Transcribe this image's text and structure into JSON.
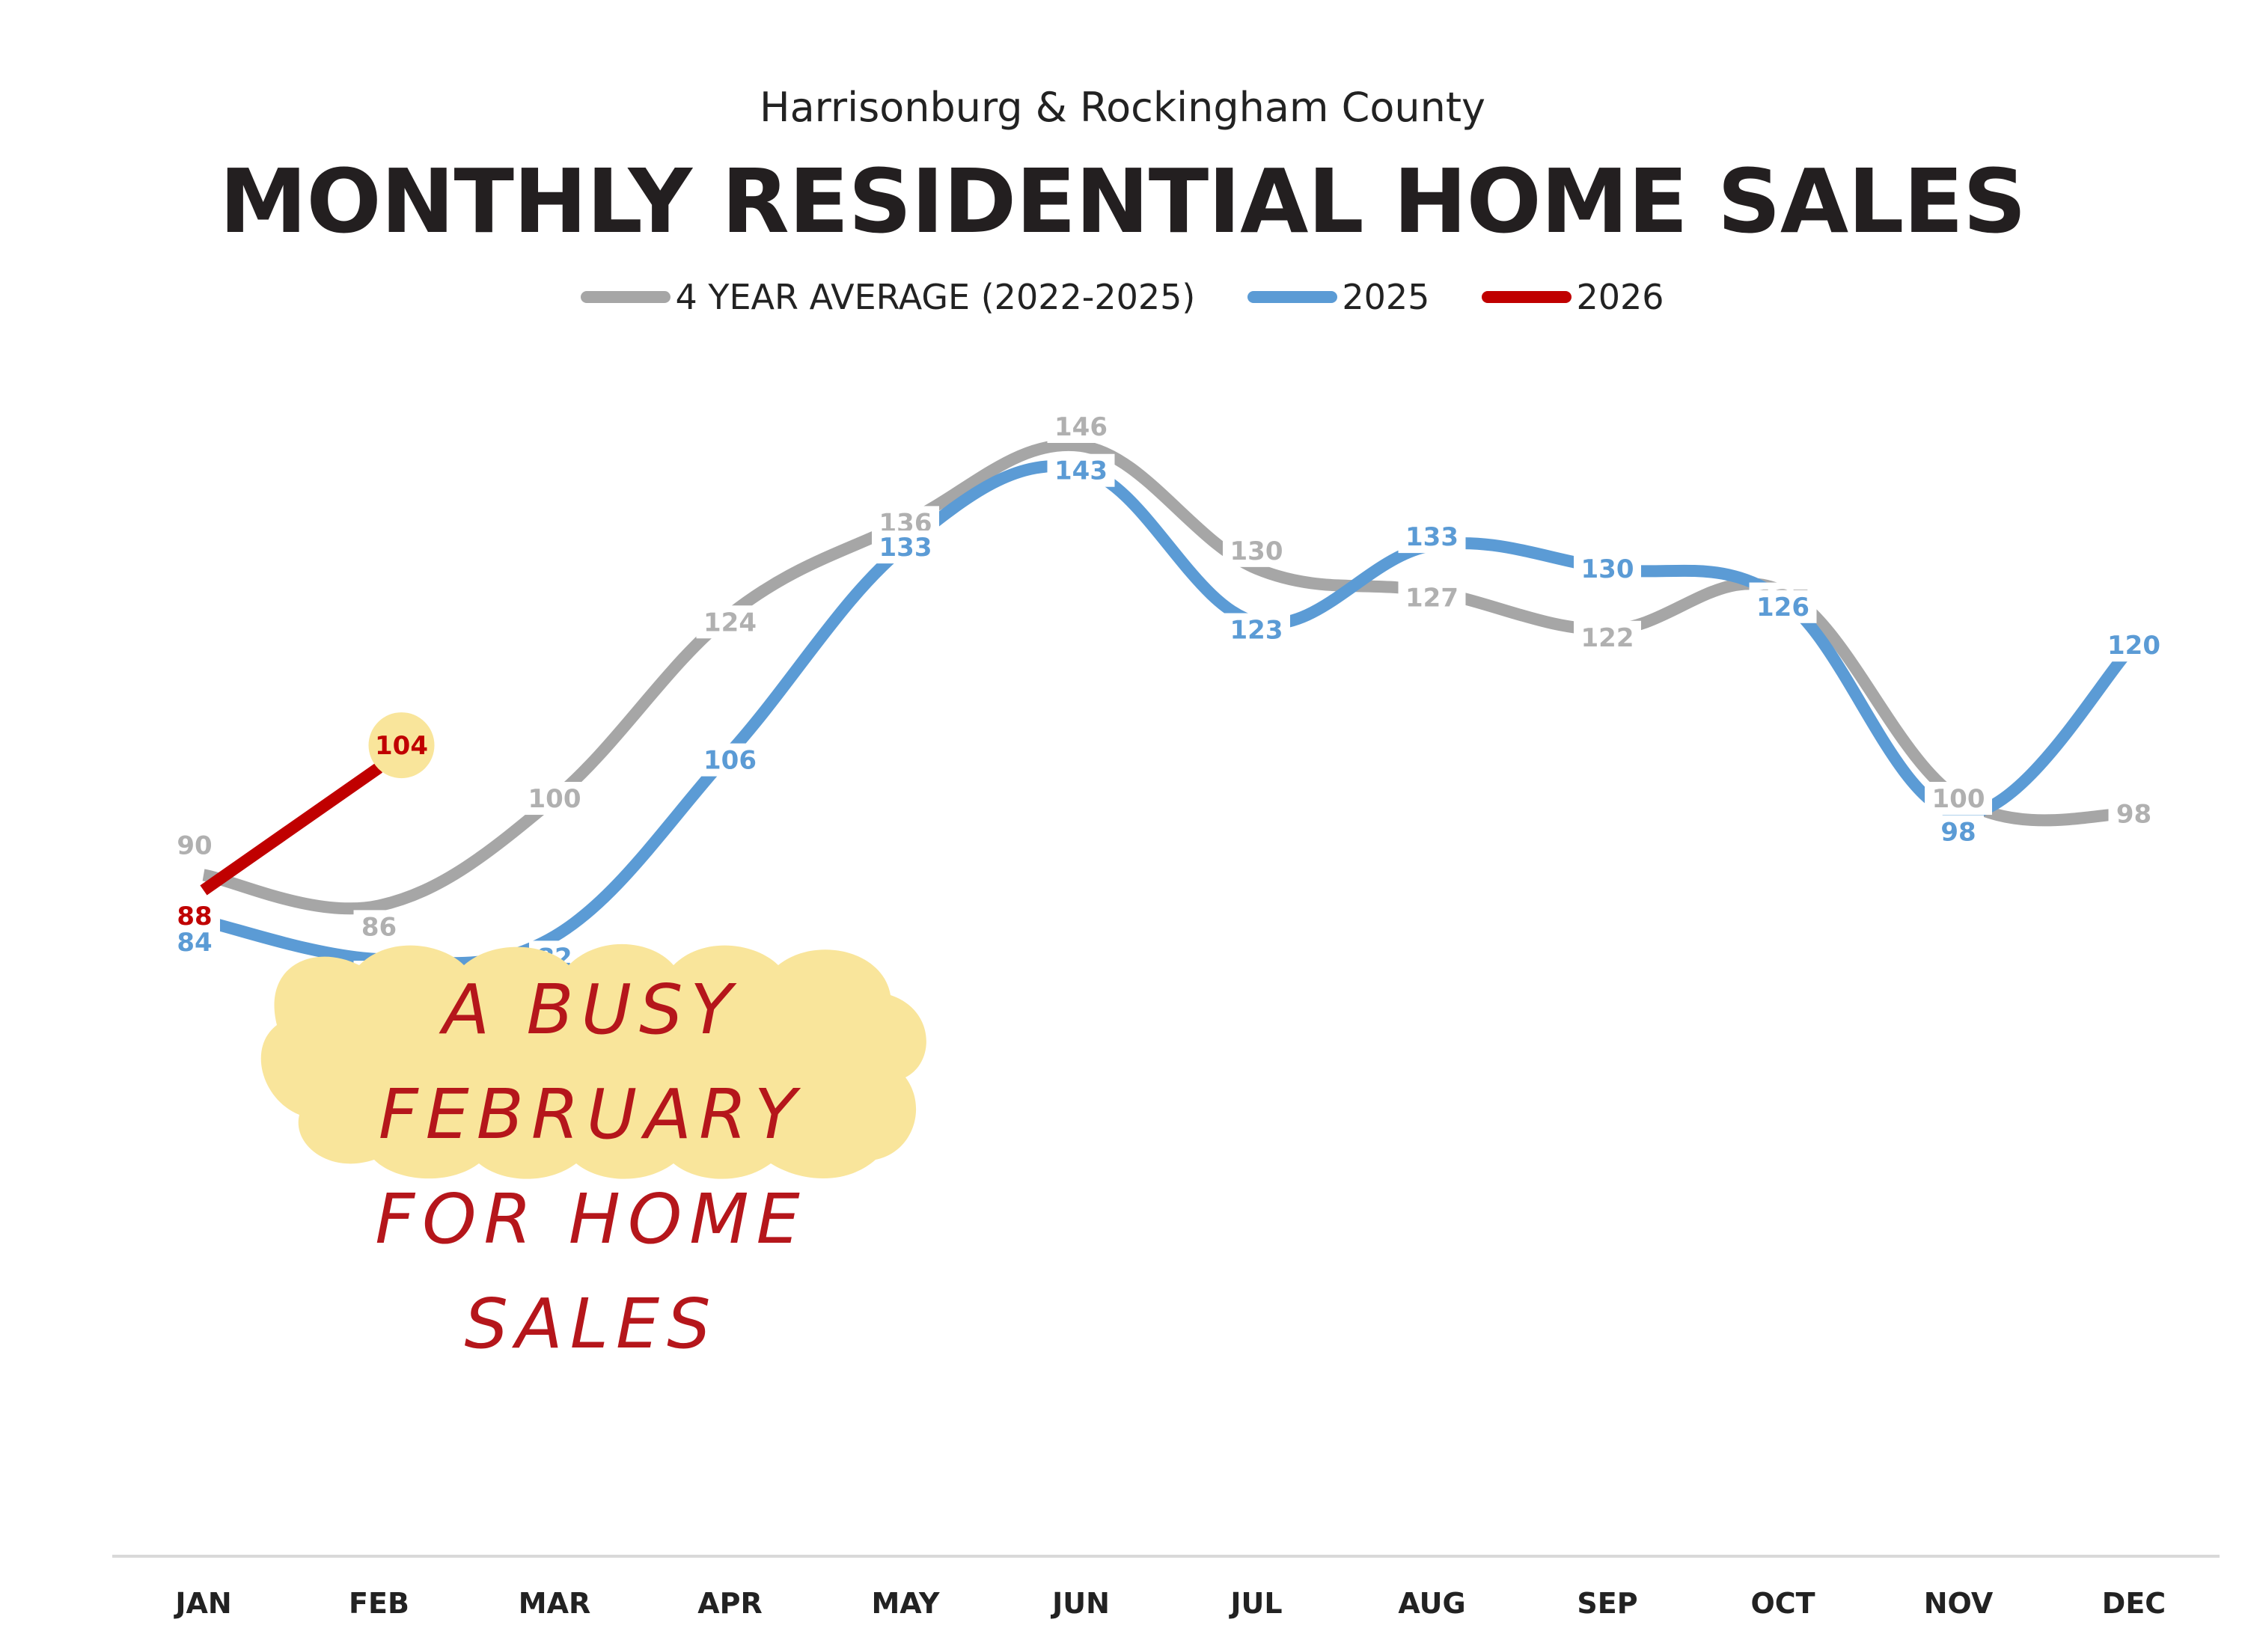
{
  "header": {
    "subtitle": "Harrisonburg & Rockingham County",
    "title": "MONTHLY RESIDENTIAL HOME SALES"
  },
  "legend": [
    {
      "label": "4 YEAR AVERAGE (2022-2025)",
      "color": "#a6a6a6"
    },
    {
      "label": "2025",
      "color": "#5b9bd5"
    },
    {
      "label": "2026",
      "color": "#c00000"
    }
  ],
  "annotation": {
    "line1": "A BUSY FEBRUARY",
    "line2": "FOR HOME SALES",
    "bg_color": "#f9e59b",
    "text_color": "#b5161b"
  },
  "highlight": {
    "month": "FEB",
    "value": "104",
    "bg_color": "#f9e59b"
  },
  "chart_data": {
    "type": "line",
    "title": "MONTHLY RESIDENTIAL HOME SALES",
    "subtitle": "Harrisonburg & Rockingham County",
    "xlabel": "",
    "ylabel": "",
    "categories": [
      "JAN",
      "FEB",
      "MAR",
      "APR",
      "MAY",
      "JUN",
      "JUL",
      "AUG",
      "SEP",
      "OCT",
      "NOV",
      "DEC"
    ],
    "series": [
      {
        "name": "4 YEAR AVERAGE (2022-2025)",
        "color": "#a6a6a6",
        "values": [
          90,
          86,
          100,
          124,
          136,
          146,
          130,
          127,
          122,
          127,
          100,
          98
        ]
      },
      {
        "name": "2025",
        "color": "#5b9bd5",
        "values": [
          84,
          79,
          82,
          106,
          133,
          143,
          123,
          133,
          130,
          126,
          98,
          120
        ]
      },
      {
        "name": "2026",
        "color": "#c00000",
        "values": [
          88,
          104,
          null,
          null,
          null,
          null,
          null,
          null,
          null,
          null,
          null,
          null
        ]
      }
    ],
    "grid": false,
    "legend_position": "top",
    "smooth": true,
    "data_labels": true,
    "annotations": [
      "A BUSY FEBRUARY FOR HOME SALES"
    ]
  }
}
